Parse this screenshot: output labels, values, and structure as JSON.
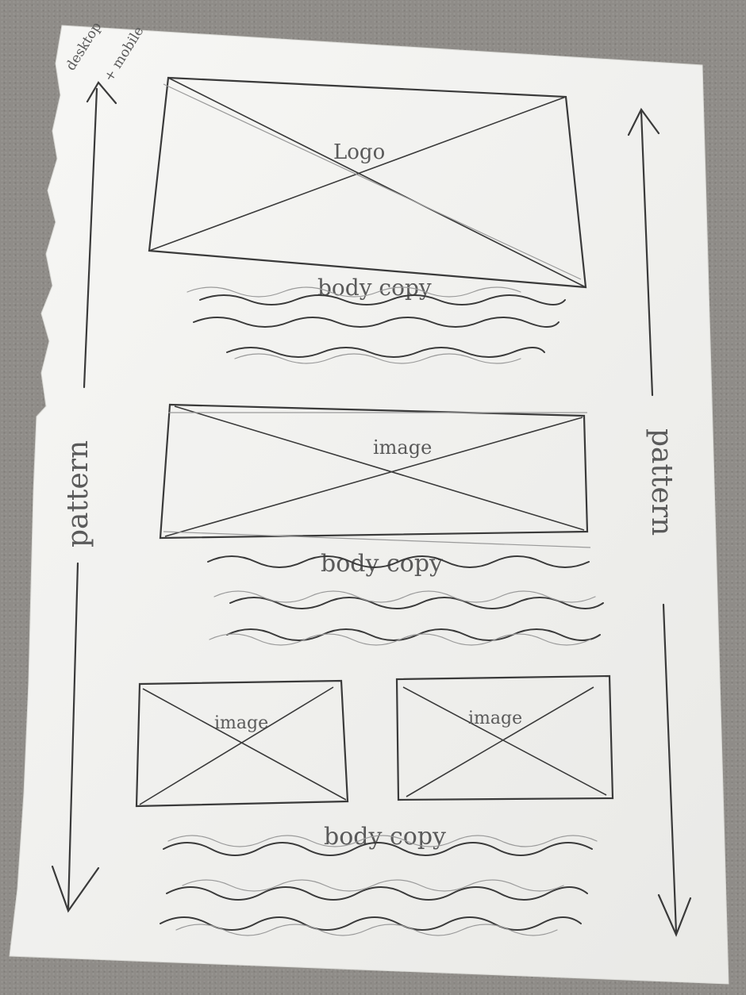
{
  "corner_note": {
    "line1": "desktop",
    "line2": "+ mobile"
  },
  "side_labels": {
    "left": "pattern",
    "right": "pattern"
  },
  "blocks": {
    "logo": {
      "label": "Logo",
      "copy": "body copy"
    },
    "image": {
      "label": "image",
      "copy": "body copy"
    },
    "image_left": {
      "label": "image"
    },
    "image_right": {
      "label": "image"
    },
    "pair_copy": "body copy"
  },
  "colors": {
    "paper": "#f4f4f2",
    "pencil": "#3a3a3a",
    "pencil_light": "#8a8a8a",
    "desk": "#8f8c88"
  },
  "icons": [
    "arrow-up-icon",
    "arrow-down-icon",
    "placeholder-x-icon"
  ]
}
